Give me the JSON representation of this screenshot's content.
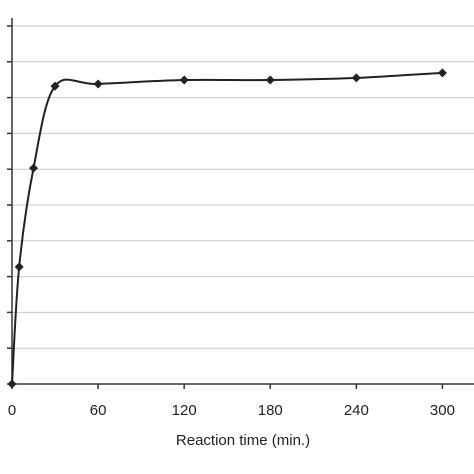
{
  "chart_data": {
    "type": "line",
    "x_label": "Reaction time (min.)",
    "x": [
      0,
      5,
      15,
      30,
      60,
      120,
      180,
      240,
      300
    ],
    "series": [
      {
        "color": "#222222",
        "values": [
          0,
          32.7,
          60.3,
          83.2,
          83.8,
          84.9,
          84.9,
          85.5,
          86.9
        ]
      }
    ],
    "xlim": [
      0,
      322
    ],
    "xticks": [
      0,
      60,
      120,
      180,
      240,
      300
    ],
    "ylim": [
      0,
      100
    ],
    "yticks": [
      0,
      10,
      20,
      30,
      40,
      50,
      60,
      70,
      80,
      90,
      100
    ],
    "grid": true,
    "smooth": true,
    "marker": "diamond"
  }
}
